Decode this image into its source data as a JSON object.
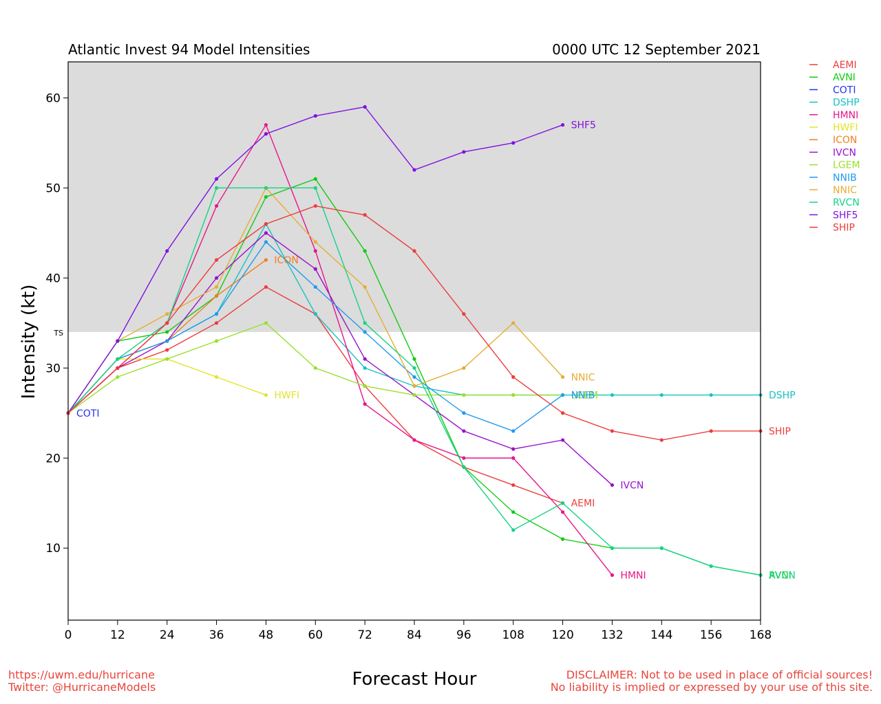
{
  "header": {
    "title": "Atlantic Invest 94 Model Intensities",
    "date": "0000 UTC 12 September 2021"
  },
  "footer": {
    "url": "https://uwm.edu/hurricane",
    "twitter": "Twitter: @HurricaneModels",
    "disclaimer_1": "DISCLAIMER: Not to be used in place of official sources!",
    "disclaimer_2": "No liability is implied or expressed by your use of this site."
  },
  "chart_data": {
    "type": "line",
    "xlabel": "Forecast Hour",
    "ylabel": "Intensity (kt)",
    "xlim": [
      0,
      168
    ],
    "ylim": [
      2,
      64
    ],
    "xticks": [
      0,
      12,
      24,
      36,
      48,
      60,
      72,
      84,
      96,
      108,
      120,
      132,
      144,
      156,
      168
    ],
    "yticks": [
      10,
      20,
      30,
      40,
      50,
      60
    ],
    "grid": false,
    "legend_position": "right",
    "ts_threshold": {
      "value": 34,
      "label": "TS",
      "band_color": "#dcdcdc"
    },
    "series": [
      {
        "name": "AEMI",
        "color": "#ee3b3b",
        "x": [
          0,
          12,
          24,
          36,
          48,
          60,
          72,
          84,
          96,
          108,
          120
        ],
        "y": [
          25,
          30,
          32,
          35,
          39,
          36,
          28,
          22,
          19,
          17,
          15
        ],
        "end_label": true
      },
      {
        "name": "AVNI",
        "color": "#11cc11",
        "x": [
          0,
          12,
          24,
          36,
          48,
          60,
          72,
          84,
          96,
          108,
          120,
          132,
          144,
          156,
          168
        ],
        "y": [
          25,
          33,
          34,
          38,
          49,
          51,
          43,
          31,
          19,
          14,
          11,
          10,
          10,
          8,
          7
        ],
        "end_label": true
      },
      {
        "name": "COTI",
        "color": "#2233ee",
        "x": [
          0
        ],
        "y": [
          25
        ],
        "end_label": true
      },
      {
        "name": "DSHP",
        "color": "#17c3c3",
        "x": [
          0,
          12,
          24,
          36,
          48,
          60,
          72,
          84,
          96,
          108,
          120,
          132,
          144,
          156,
          168
        ],
        "y": [
          25,
          31,
          33,
          36,
          46,
          36,
          30,
          28,
          27,
          27,
          27,
          27,
          27,
          27,
          27
        ],
        "end_label": true
      },
      {
        "name": "HMNI",
        "color": "#e8158a",
        "x": [
          0,
          12,
          24,
          36,
          48,
          60,
          72,
          84,
          96,
          108,
          120,
          132
        ],
        "y": [
          25,
          30,
          35,
          48,
          57,
          43,
          26,
          22,
          20,
          20,
          14,
          7
        ],
        "end_label": true
      },
      {
        "name": "HWFI",
        "color": "#e3e32a",
        "x": [
          0,
          12,
          24,
          36,
          48
        ],
        "y": [
          25,
          31,
          31,
          29,
          27
        ],
        "end_label": true
      },
      {
        "name": "ICON",
        "color": "#ef7f22",
        "x": [
          0,
          12,
          24,
          36,
          48
        ],
        "y": [
          25,
          31,
          33,
          38,
          42
        ],
        "end_label": true
      },
      {
        "name": "IVCN",
        "color": "#9a11cc",
        "x": [
          0,
          12,
          24,
          36,
          48,
          60,
          72,
          84,
          96,
          108,
          120,
          132
        ],
        "y": [
          25,
          30,
          33,
          40,
          45,
          41,
          31,
          27,
          23,
          21,
          22,
          17
        ],
        "end_label": true
      },
      {
        "name": "LGEM",
        "color": "#9ae02b",
        "x": [
          0,
          12,
          24,
          36,
          48,
          60,
          72,
          84,
          96,
          108,
          120
        ],
        "y": [
          25,
          29,
          31,
          33,
          35,
          30,
          28,
          27,
          27,
          27,
          27
        ],
        "end_label": true
      },
      {
        "name": "NNIB",
        "color": "#1e9bef",
        "x": [
          0,
          12,
          24,
          36,
          48,
          60,
          72,
          84,
          96,
          108,
          120
        ],
        "y": [
          25,
          31,
          33,
          36,
          44,
          39,
          34,
          29,
          25,
          23,
          27
        ],
        "end_label": true
      },
      {
        "name": "NNIC",
        "color": "#e6ad33",
        "x": [
          0,
          12,
          24,
          36,
          48,
          60,
          72,
          84,
          96,
          108,
          120
        ],
        "y": [
          25,
          33,
          36,
          39,
          50,
          44,
          39,
          28,
          30,
          35,
          29
        ],
        "end_label": true
      },
      {
        "name": "RVCN",
        "color": "#15d387",
        "x": [
          0,
          12,
          24,
          36,
          48,
          60,
          72,
          84,
          96,
          108,
          120,
          132,
          144,
          156,
          168
        ],
        "y": [
          25,
          31,
          35,
          50,
          50,
          50,
          35,
          30,
          19,
          12,
          15,
          10,
          10,
          8,
          7
        ],
        "end_label": true
      },
      {
        "name": "SHF5",
        "color": "#7f11e0",
        "x": [
          0,
          12,
          24,
          36,
          48,
          60,
          72,
          84,
          96,
          108,
          120
        ],
        "y": [
          25,
          33,
          43,
          51,
          56,
          58,
          59,
          52,
          54,
          55,
          57
        ],
        "end_label": true
      },
      {
        "name": "SHIP",
        "color": "#ee3b3b",
        "x": [
          0,
          12,
          24,
          36,
          48,
          60,
          72,
          84,
          96,
          108,
          120,
          132,
          144,
          156,
          168
        ],
        "y": [
          25,
          30,
          35,
          42,
          46,
          48,
          47,
          43,
          36,
          29,
          25,
          23,
          22,
          23,
          23
        ],
        "end_label": true
      }
    ]
  }
}
